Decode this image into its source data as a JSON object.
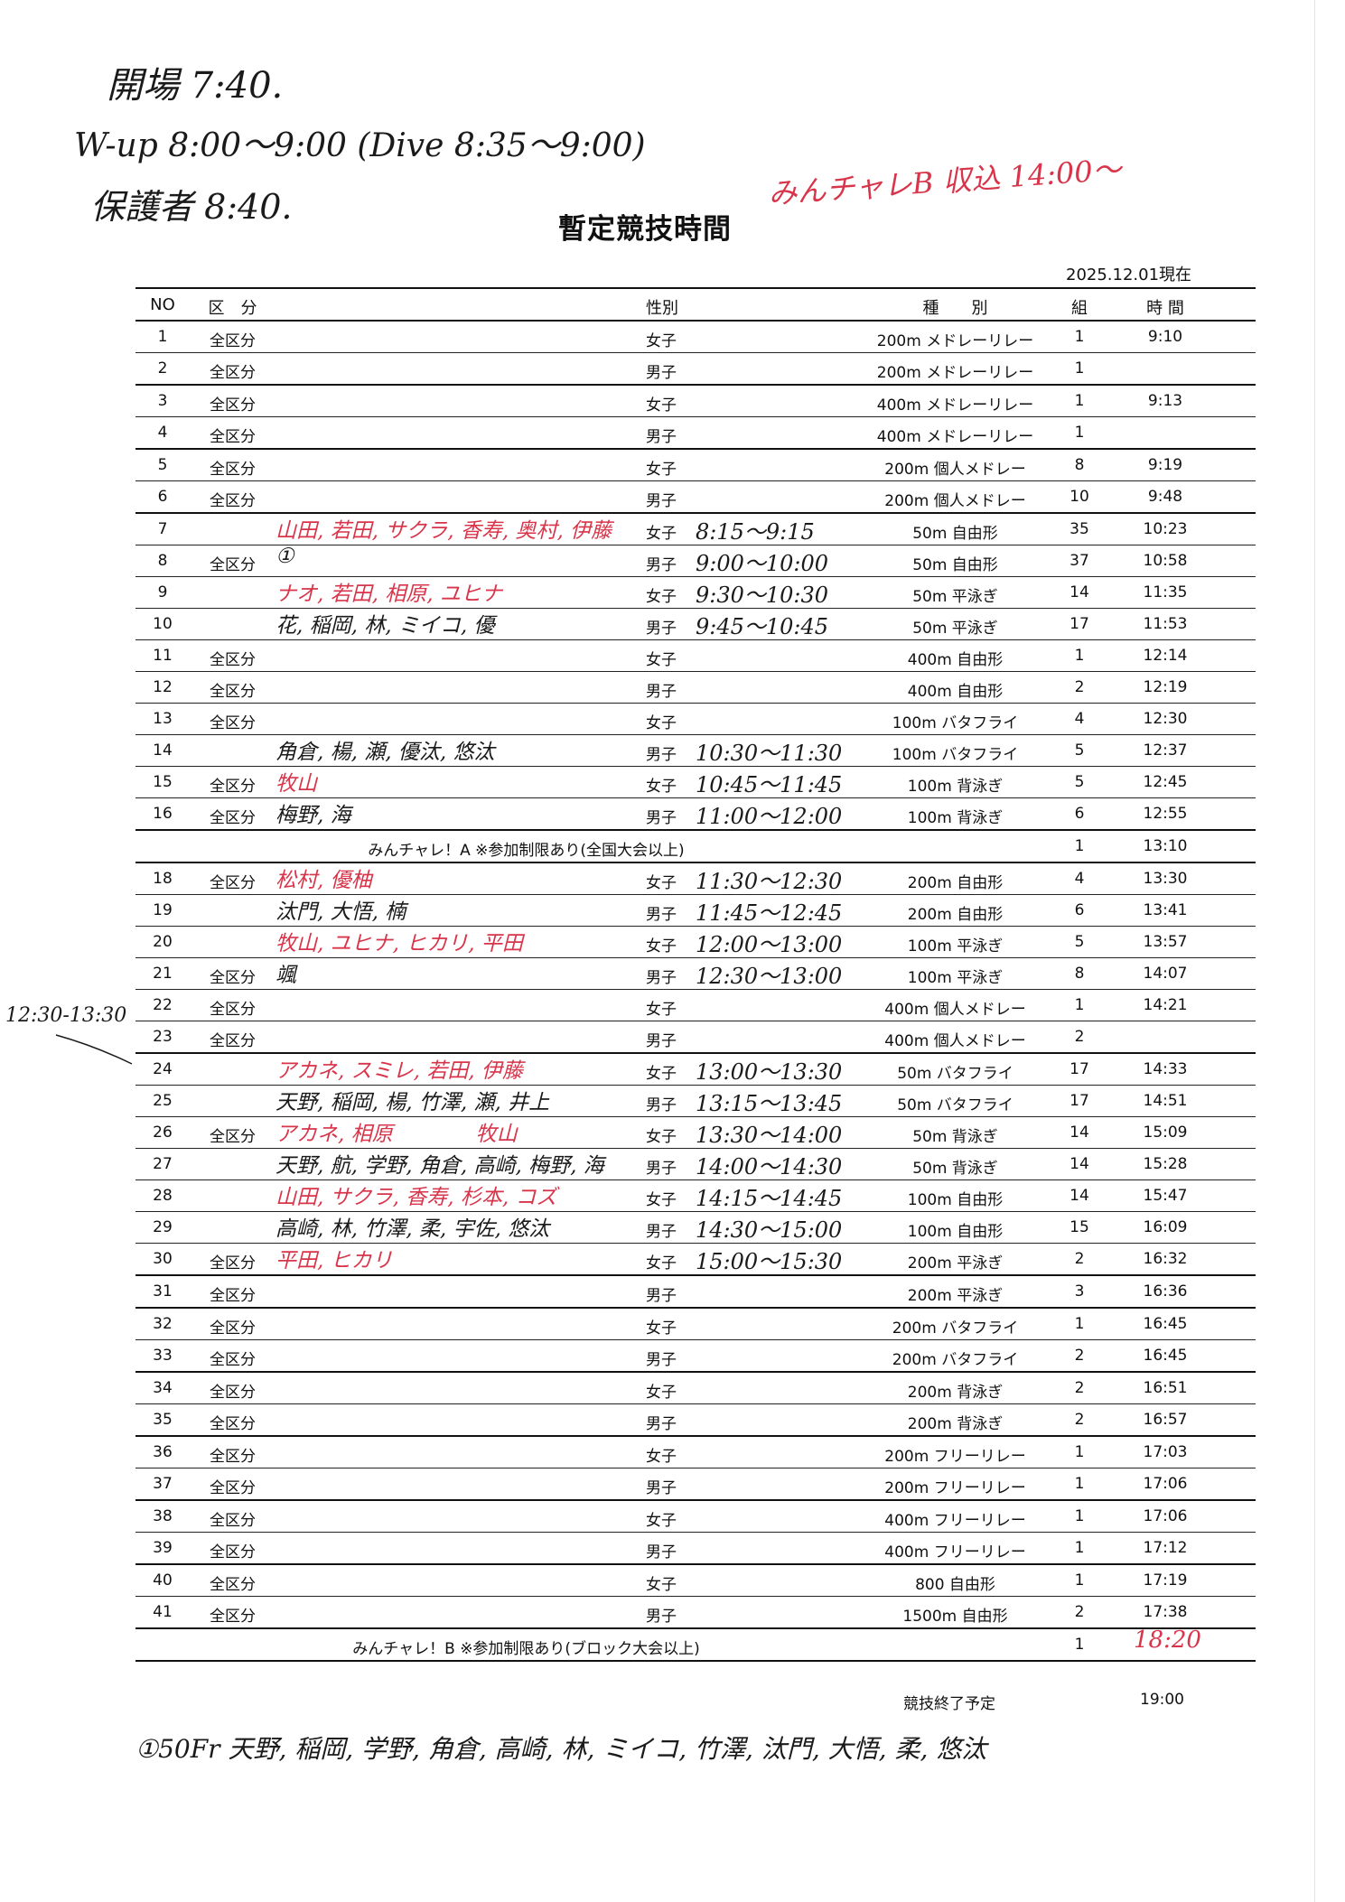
{
  "document": {
    "title": "暫定競技時間",
    "as_of": "2025.12.01現在",
    "columns": [
      "NO",
      "区　分",
      "性別",
      "種　　別",
      "組",
      "時 間"
    ],
    "rows": [
      {
        "no": "1",
        "div": "全区分",
        "sex": "女子",
        "event": "200m メドレーリレー",
        "group": "1",
        "time": "9:10"
      },
      {
        "no": "2",
        "div": "全区分",
        "sex": "男子",
        "event": "200m メドレーリレー",
        "group": "1",
        "time": ""
      },
      {
        "no": "3",
        "div": "全区分",
        "sex": "女子",
        "event": "400m メドレーリレー",
        "group": "1",
        "time": "9:13"
      },
      {
        "no": "4",
        "div": "全区分",
        "sex": "男子",
        "event": "400m メドレーリレー",
        "group": "1",
        "time": ""
      },
      {
        "no": "5",
        "div": "全区分",
        "sex": "女子",
        "event": "200m 個人メドレー",
        "group": "8",
        "time": "9:19"
      },
      {
        "no": "6",
        "div": "全区分",
        "sex": "男子",
        "event": "200m 個人メドレー",
        "group": "10",
        "time": "9:48"
      },
      {
        "no": "7",
        "div": "",
        "sex": "女子",
        "event": "50m 自由形",
        "group": "35",
        "time": "10:23",
        "hand_names": "山田, 若田, サクラ, 香寿, 奥村, 伊藤",
        "hand_color": "red",
        "hand_range": "8:15～9:15"
      },
      {
        "no": "8",
        "div": "全区分",
        "sex": "男子",
        "event": "50m 自由形",
        "group": "37",
        "time": "10:58",
        "hand_names": "①",
        "hand_color": "black",
        "hand_range": "9:00～10:00"
      },
      {
        "no": "9",
        "div": "",
        "sex": "女子",
        "event": "50m 平泳ぎ",
        "group": "14",
        "time": "11:35",
        "hand_names": "ナオ, 若田, 相原, ユヒナ",
        "hand_color": "red",
        "hand_range": "9:30～10:30"
      },
      {
        "no": "10",
        "div": "",
        "sex": "男子",
        "event": "50m 平泳ぎ",
        "group": "17",
        "time": "11:53",
        "hand_names": "花, 稲岡, 林, ミイコ, 優",
        "hand_color": "black",
        "hand_range": "9:45～10:45"
      },
      {
        "no": "11",
        "div": "全区分",
        "sex": "女子",
        "event": "400m 自由形",
        "group": "1",
        "time": "12:14"
      },
      {
        "no": "12",
        "div": "全区分",
        "sex": "男子",
        "event": "400m 自由形",
        "group": "2",
        "time": "12:19"
      },
      {
        "no": "13",
        "div": "全区分",
        "sex": "女子",
        "event": "100m バタフライ",
        "group": "4",
        "time": "12:30"
      },
      {
        "no": "14",
        "div": "",
        "sex": "男子",
        "event": "100m バタフライ",
        "group": "5",
        "time": "12:37",
        "hand_names": "角倉, 楊, 瀬, 優汰, 悠汰",
        "hand_color": "black",
        "hand_range": "10:30～11:30"
      },
      {
        "no": "15",
        "div": "全区分",
        "sex": "女子",
        "event": "100m 背泳ぎ",
        "group": "5",
        "time": "12:45",
        "hand_names": "牧山",
        "hand_color": "red",
        "hand_range": "10:45～11:45"
      },
      {
        "no": "16",
        "div": "全区分",
        "sex": "男子",
        "event": "100m 背泳ぎ",
        "group": "6",
        "time": "12:55",
        "hand_names": "梅野, 海",
        "hand_color": "black",
        "hand_range": "11:00～12:00"
      },
      {
        "no": "",
        "note": "みんチャレ！A ※参加制限あり(全国大会以上)",
        "group": "1",
        "time": "13:10"
      },
      {
        "no": "18",
        "div": "全区分",
        "sex": "女子",
        "event": "200m 自由形",
        "group": "4",
        "time": "13:30",
        "hand_names": "松村, 優柚",
        "hand_color": "red",
        "hand_range": "11:30～12:30"
      },
      {
        "no": "19",
        "div": "",
        "sex": "男子",
        "event": "200m 自由形",
        "group": "6",
        "time": "13:41",
        "hand_names": "汰門, 大悟, 楠",
        "hand_color": "black",
        "hand_range": "11:45～12:45"
      },
      {
        "no": "20",
        "div": "",
        "sex": "女子",
        "event": "100m 平泳ぎ",
        "group": "5",
        "time": "13:57",
        "hand_names": "牧山, ユヒナ, ヒカリ, 平田",
        "hand_color": "red",
        "hand_range": "12:00～13:00"
      },
      {
        "no": "21",
        "div": "全区分",
        "sex": "男子",
        "event": "100m 平泳ぎ",
        "group": "8",
        "time": "14:07",
        "hand_names": "颯",
        "hand_color": "black",
        "hand_range": "12:30～13:00"
      },
      {
        "no": "22",
        "div": "全区分",
        "sex": "女子",
        "event": "400m 個人メドレー",
        "group": "1",
        "time": "14:21"
      },
      {
        "no": "23",
        "div": "全区分",
        "sex": "男子",
        "event": "400m 個人メドレー",
        "group": "2",
        "time": ""
      },
      {
        "no": "24",
        "div": "",
        "sex": "女子",
        "event": "50m バタフライ",
        "group": "17",
        "time": "14:33",
        "hand_names": "アカネ, スミレ, 若田, 伊藤",
        "hand_color": "red",
        "hand_range": "13:00～13:30"
      },
      {
        "no": "25",
        "div": "",
        "sex": "男子",
        "event": "50m バタフライ",
        "group": "17",
        "time": "14:51",
        "hand_names": "天野, 稲岡, 楊, 竹澤, 瀬, 井上",
        "hand_color": "black",
        "hand_range": "13:15～13:45"
      },
      {
        "no": "26",
        "div": "全区分",
        "sex": "女子",
        "event": "50m 背泳ぎ",
        "group": "14",
        "time": "15:09",
        "hand_names": "アカネ, 相原　　　　牧山",
        "hand_color": "red",
        "hand_range": "13:30～14:00"
      },
      {
        "no": "27",
        "div": "",
        "sex": "男子",
        "event": "50m 背泳ぎ",
        "group": "14",
        "time": "15:28",
        "hand_names": "天野, 航, 学野, 角倉, 高崎, 梅野, 海",
        "hand_color": "black",
        "hand_range": "14:00～14:30"
      },
      {
        "no": "28",
        "div": "",
        "sex": "女子",
        "event": "100m 自由形",
        "group": "14",
        "time": "15:47",
        "hand_names": "山田, サクラ, 香寿, 杉本, コズ",
        "hand_color": "red",
        "hand_range": "14:15～14:45"
      },
      {
        "no": "29",
        "div": "",
        "sex": "男子",
        "event": "100m 自由形",
        "group": "15",
        "time": "16:09",
        "hand_names": "高崎, 林, 竹澤, 柔, 宇佐, 悠汰",
        "hand_color": "black",
        "hand_range": "14:30～15:00"
      },
      {
        "no": "30",
        "div": "全区分",
        "sex": "女子",
        "event": "200m 平泳ぎ",
        "group": "2",
        "time": "16:32",
        "hand_names": "平田, ヒカリ",
        "hand_color": "red",
        "hand_range": "15:00～15:30"
      },
      {
        "no": "31",
        "div": "全区分",
        "sex": "男子",
        "event": "200m 平泳ぎ",
        "group": "3",
        "time": "16:36"
      },
      {
        "no": "32",
        "div": "全区分",
        "sex": "女子",
        "event": "200m バタフライ",
        "group": "1",
        "time": "16:45"
      },
      {
        "no": "33",
        "div": "全区分",
        "sex": "男子",
        "event": "200m バタフライ",
        "group": "2",
        "time": "16:45"
      },
      {
        "no": "34",
        "div": "全区分",
        "sex": "女子",
        "event": "200m 背泳ぎ",
        "group": "2",
        "time": "16:51"
      },
      {
        "no": "35",
        "div": "全区分",
        "sex": "男子",
        "event": "200m 背泳ぎ",
        "group": "2",
        "time": "16:57"
      },
      {
        "no": "36",
        "div": "全区分",
        "sex": "女子",
        "event": "200m フリーリレー",
        "group": "1",
        "time": "17:03"
      },
      {
        "no": "37",
        "div": "全区分",
        "sex": "男子",
        "event": "200m フリーリレー",
        "group": "1",
        "time": "17:06"
      },
      {
        "no": "38",
        "div": "全区分",
        "sex": "女子",
        "event": "400m フリーリレー",
        "group": "1",
        "time": "17:06"
      },
      {
        "no": "39",
        "div": "全区分",
        "sex": "男子",
        "event": "400m フリーリレー",
        "group": "1",
        "time": "17:12"
      },
      {
        "no": "40",
        "div": "全区分",
        "sex": "女子",
        "event": "800 自由形",
        "group": "1",
        "time": "17:19"
      },
      {
        "no": "41",
        "div": "全区分",
        "sex": "男子",
        "event": "1500m 自由形",
        "group": "2",
        "time": "17:38"
      },
      {
        "no": "",
        "note": "みんチャレ！B ※参加制限あり(ブロック大会以上)",
        "group": "1",
        "time": "",
        "hand_time": "18:20"
      }
    ],
    "footer_label": "競技終了予定",
    "footer_time": "19:00"
  },
  "handwriting": {
    "top_line1": "開場 7:40.",
    "top_line2": "W-up 8:00～9:00 (Dive 8:35～9:00)",
    "top_line3": "保護者 8:40.",
    "red_note": "みんチャレB 収込 14:00～",
    "margin_note": "12:30-13:30",
    "bottom_note": "①50Fr 天野, 稲岡, 学野, 角倉, 高崎, 林, ミイコ, 竹澤, 汰門, 大悟, 柔, 悠汰"
  },
  "colors": {
    "ink": "#111111",
    "red_pen": "#d8344a",
    "pen": "#1a1a1a"
  }
}
